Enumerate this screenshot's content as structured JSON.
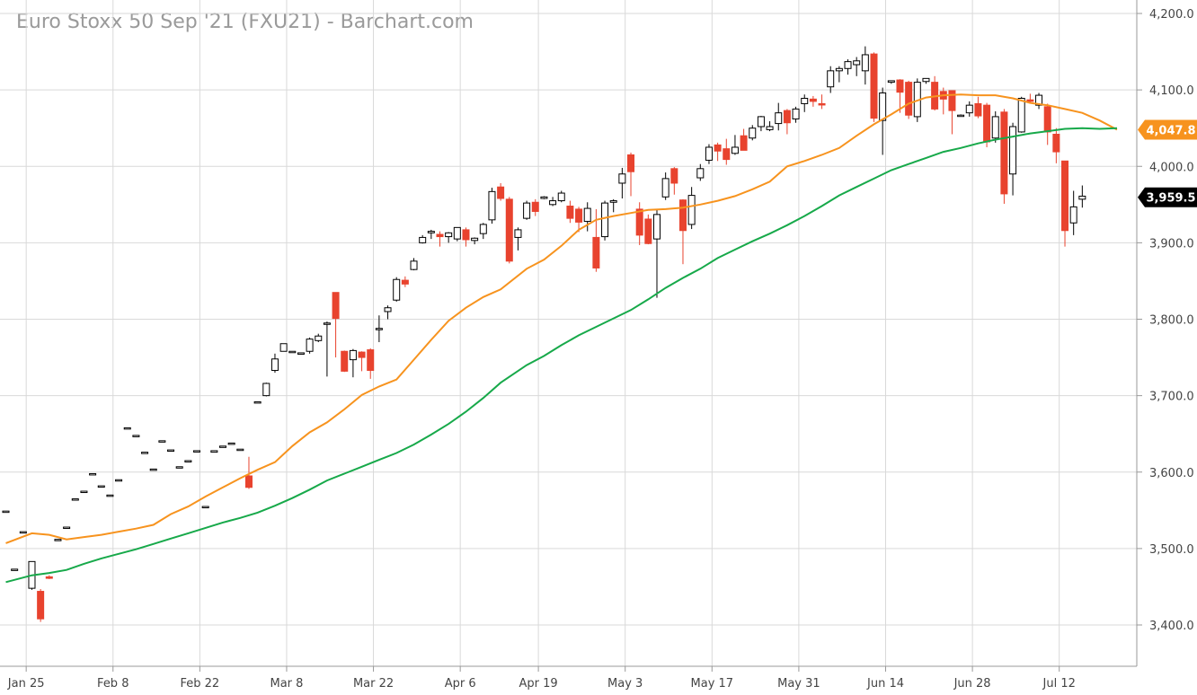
{
  "title": "Euro Stoxx 50 Sep '21 (FXU21) - Barchart.com",
  "chart_data": {
    "type": "candlestick",
    "title": "Euro Stoxx 50 Sep '21 (FXU21) - Barchart.com",
    "ylim": [
      3380,
      4200
    ],
    "y_ticks": [
      "3,400.0",
      "3,500.0",
      "3,600.0",
      "3,700.0",
      "3,800.0",
      "3,900.0",
      "4,000.0",
      "4,100.0",
      "4,200.0"
    ],
    "x_tick_labels": [
      {
        "label": "Jan 25",
        "index": 1
      },
      {
        "label": "Feb 8",
        "index": 11
      },
      {
        "label": "Feb 22",
        "index": 21
      },
      {
        "label": "Mar 8",
        "index": 31
      },
      {
        "label": "Mar 22",
        "index": 41
      },
      {
        "label": "Apr 6",
        "index": 51
      },
      {
        "label": "Apr 19",
        "index": 60
      },
      {
        "label": "May 3",
        "index": 70
      },
      {
        "label": "May 17",
        "index": 80
      },
      {
        "label": "May 31",
        "index": 90
      },
      {
        "label": "Jun 14",
        "index": 100
      },
      {
        "label": "Jun 28",
        "index": 110
      },
      {
        "label": "Jul 12",
        "index": 120
      }
    ],
    "grid": true,
    "colors": {
      "up": "#ffffff",
      "up_edge": "#000000",
      "down": "#e8432e",
      "ma_short": "#f7931e",
      "ma_long": "#17a94a",
      "grid": "#d9d9d9"
    },
    "candles": [
      [
        3549,
        3549,
        3549,
        3549
      ],
      [
        3473,
        3473,
        3473,
        3473
      ],
      [
        3522,
        3522,
        3522,
        3522
      ],
      [
        3448,
        3483,
        3446,
        3481
      ],
      [
        3444,
        3408,
        3404,
        3447
      ],
      [
        3463,
        3461,
        3460,
        3465
      ],
      [
        3512,
        3512,
        3512,
        3512
      ],
      [
        3528,
        3528,
        3528,
        3528
      ],
      [
        3565,
        3565,
        3565,
        3565
      ],
      [
        3575,
        3575,
        3575,
        3575
      ],
      [
        3598,
        3598,
        3598,
        3598
      ],
      [
        3582,
        3582,
        3582,
        3582
      ],
      [
        3570,
        3570,
        3570,
        3570
      ],
      [
        3590,
        3590,
        3590,
        3590
      ],
      [
        3658,
        3658,
        3658,
        3658
      ],
      [
        3648,
        3648,
        3648,
        3648
      ],
      [
        3626,
        3626,
        3626,
        3626
      ],
      [
        3604,
        3604,
        3604,
        3604
      ],
      [
        3641,
        3641,
        3641,
        3641
      ],
      [
        3629,
        3629,
        3629,
        3629
      ],
      [
        3607,
        3607,
        3607,
        3607
      ],
      [
        3615,
        3615,
        3615,
        3615
      ],
      [
        3628,
        3628,
        3628,
        3628
      ],
      [
        3555,
        3555,
        3555,
        3555
      ],
      [
        3626,
        3628,
        3626,
        3628
      ],
      [
        3634,
        3634,
        3634,
        3634
      ],
      [
        3638,
        3638,
        3638,
        3638
      ],
      [
        3630,
        3630,
        3630,
        3630
      ],
      [
        3595,
        3580,
        3578,
        3620
      ],
      [
        3692,
        3692,
        3692,
        3692
      ],
      [
        3700,
        3716,
        3699,
        3717
      ],
      [
        3733,
        3748,
        3730,
        3755
      ],
      [
        3758,
        3768,
        3758,
        3768
      ],
      [
        3758,
        3758,
        3758,
        3758
      ],
      [
        3756,
        3756,
        3756,
        3756
      ],
      [
        3758,
        3774,
        3755,
        3776
      ],
      [
        3772,
        3778,
        3770,
        3781
      ],
      [
        3794,
        3795,
        3725,
        3797
      ],
      [
        3835,
        3801,
        3750,
        3835
      ],
      [
        3758,
        3732,
        3731,
        3759
      ],
      [
        3747,
        3759,
        3724,
        3761
      ],
      [
        3757,
        3750,
        3732,
        3758
      ],
      [
        3760,
        3733,
        3722,
        3762
      ],
      [
        3788,
        3788,
        3770,
        3805
      ],
      [
        3810,
        3815,
        3800,
        3818
      ],
      [
        3825,
        3852,
        3823,
        3855
      ],
      [
        3851,
        3846,
        3842,
        3856
      ],
      [
        3865,
        3876,
        3864,
        3880
      ],
      [
        3900,
        3907,
        3899,
        3910
      ],
      [
        3913,
        3915,
        3905,
        3917
      ],
      [
        3911,
        3908,
        3895,
        3915
      ],
      [
        3908,
        3913,
        3900,
        3914
      ],
      [
        3905,
        3920,
        3902,
        3920
      ],
      [
        3917,
        3904,
        3895,
        3920
      ],
      [
        3903,
        3906,
        3898,
        3907
      ],
      [
        3912,
        3924,
        3905,
        3926
      ],
      [
        3930,
        3967,
        3925,
        3972
      ],
      [
        3973,
        3958,
        3955,
        3978
      ],
      [
        3957,
        3876,
        3873,
        3960
      ],
      [
        3907,
        3917,
        3890,
        3920
      ],
      [
        3932,
        3952,
        3930,
        3955
      ],
      [
        3953,
        3941,
        3935,
        3957
      ],
      [
        3958,
        3960,
        3957,
        3961
      ],
      [
        3950,
        3955,
        3948,
        3960
      ],
      [
        3955,
        3965,
        3953,
        3968
      ],
      [
        3948,
        3932,
        3926,
        3955
      ],
      [
        3944,
        3927,
        3914,
        3947
      ],
      [
        3928,
        3945,
        3915,
        3953
      ],
      [
        3907,
        3867,
        3862,
        3944
      ],
      [
        3908,
        3952,
        3903,
        3955
      ],
      [
        3953,
        3955,
        3940,
        3957
      ],
      [
        3978,
        3990,
        3958,
        3998
      ],
      [
        4015,
        3993,
        3961,
        4018
      ],
      [
        3944,
        3910,
        3897,
        3953
      ],
      [
        3931,
        3899,
        3898,
        3937
      ],
      [
        3905,
        3937,
        3828,
        3943
      ],
      [
        3960,
        3984,
        3956,
        3992
      ],
      [
        3997,
        3978,
        3963,
        3999
      ],
      [
        3956,
        3916,
        3872,
        3957
      ],
      [
        3924,
        3962,
        3918,
        3973
      ],
      [
        3985,
        3997,
        3981,
        4003
      ],
      [
        4008,
        4025,
        4003,
        4029
      ],
      [
        4028,
        4020,
        4007,
        4031
      ],
      [
        4023,
        4009,
        4002,
        4036
      ],
      [
        4017,
        4025,
        4015,
        4041
      ],
      [
        4040,
        4021,
        4021,
        4049
      ],
      [
        4037,
        4050,
        4034,
        4054
      ],
      [
        4052,
        4065,
        4046,
        4066
      ],
      [
        4048,
        4052,
        4046,
        4059
      ],
      [
        4056,
        4070,
        4047,
        4083
      ],
      [
        4073,
        4057,
        4042,
        4075
      ],
      [
        4062,
        4075,
        4057,
        4078
      ],
      [
        4082,
        4089,
        4071,
        4094
      ],
      [
        4088,
        4085,
        4078,
        4092
      ],
      [
        4082,
        4081,
        4075,
        4094
      ],
      [
        4104,
        4125,
        4096,
        4131
      ],
      [
        4125,
        4128,
        4110,
        4131
      ],
      [
        4128,
        4137,
        4120,
        4140
      ],
      [
        4133,
        4138,
        4118,
        4143
      ],
      [
        4125,
        4146,
        4107,
        4157
      ],
      [
        4147,
        4063,
        4058,
        4149
      ],
      [
        4060,
        4096,
        4015,
        4103
      ],
      [
        4110,
        4112,
        4108,
        4112
      ],
      [
        4113,
        4097,
        4070,
        4114
      ],
      [
        4110,
        4067,
        4062,
        4112
      ],
      [
        4065,
        4110,
        4058,
        4115
      ],
      [
        4111,
        4115,
        4108,
        4115
      ],
      [
        4110,
        4075,
        4073,
        4118
      ],
      [
        4098,
        4088,
        4068,
        4103
      ],
      [
        4099,
        4073,
        4042,
        4099
      ],
      [
        4067,
        4067,
        4067,
        4068
      ],
      [
        4070,
        4080,
        4065,
        4085
      ],
      [
        4082,
        4066,
        4063,
        4091
      ],
      [
        4080,
        4032,
        4025,
        4083
      ],
      [
        4037,
        4065,
        4031,
        4072
      ],
      [
        4071,
        3964,
        3951,
        4075
      ],
      [
        3990,
        4052,
        3962,
        4057
      ],
      [
        4045,
        4089,
        4044,
        4091
      ],
      [
        4087,
        4085,
        4082,
        4095
      ],
      [
        4080,
        4093,
        4075,
        4096
      ],
      [
        4078,
        4045,
        4028,
        4082
      ],
      [
        4042,
        4019,
        4004,
        4050
      ],
      [
        4007,
        3916,
        3895,
        4007
      ],
      [
        3926,
        3947,
        3910,
        3968
      ],
      [
        3957,
        3961,
        3946,
        3975
      ]
    ],
    "series": [
      {
        "values": [
          [
            0,
            3507
          ],
          [
            3,
            3520
          ],
          [
            5,
            3518
          ],
          [
            7,
            3512
          ],
          [
            9,
            3515
          ],
          [
            11,
            3518
          ],
          [
            13,
            3522
          ],
          [
            15,
            3526
          ],
          [
            17,
            3531
          ],
          [
            19,
            3545
          ],
          [
            21,
            3555
          ],
          [
            23,
            3568
          ],
          [
            25,
            3580
          ],
          [
            27,
            3592
          ],
          [
            29,
            3603
          ],
          [
            31,
            3613
          ],
          [
            33,
            3634
          ],
          [
            35,
            3652
          ],
          [
            37,
            3665
          ],
          [
            39,
            3682
          ],
          [
            41,
            3701
          ],
          [
            43,
            3712
          ],
          [
            45,
            3721
          ],
          [
            47,
            3747
          ],
          [
            49,
            3773
          ],
          [
            51,
            3798
          ],
          [
            53,
            3815
          ],
          [
            55,
            3829
          ],
          [
            57,
            3839
          ],
          [
            60,
            3866
          ],
          [
            62,
            3878
          ],
          [
            64,
            3896
          ],
          [
            66,
            3917
          ],
          [
            68,
            3930
          ],
          [
            70,
            3935
          ],
          [
            72,
            3939
          ],
          [
            74,
            3943
          ],
          [
            76,
            3944
          ],
          [
            78,
            3946
          ],
          [
            80,
            3950
          ],
          [
            82,
            3955
          ],
          [
            84,
            3961
          ],
          [
            86,
            3970
          ],
          [
            88,
            3980
          ],
          [
            90,
            4000
          ],
          [
            92,
            4007
          ],
          [
            94,
            4015
          ],
          [
            96,
            4024
          ],
          [
            98,
            4040
          ],
          [
            100,
            4055
          ],
          [
            102,
            4068
          ],
          [
            104,
            4082
          ],
          [
            106,
            4090
          ],
          [
            108,
            4093
          ],
          [
            110,
            4094
          ],
          [
            112,
            4093
          ],
          [
            114,
            4093
          ],
          [
            116,
            4089
          ],
          [
            118,
            4083
          ],
          [
            120,
            4080
          ],
          [
            122,
            4075
          ],
          [
            124,
            4070
          ],
          [
            126,
            4060
          ],
          [
            128,
            4048
          ]
        ]
      },
      {
        "values": [
          [
            0,
            3456
          ],
          [
            3,
            3465
          ],
          [
            5,
            3468
          ],
          [
            7,
            3472
          ],
          [
            9,
            3480
          ],
          [
            11,
            3487
          ],
          [
            13,
            3493
          ],
          [
            15,
            3499
          ],
          [
            17,
            3506
          ],
          [
            19,
            3513
          ],
          [
            21,
            3520
          ],
          [
            23,
            3527
          ],
          [
            25,
            3534
          ],
          [
            27,
            3540
          ],
          [
            29,
            3547
          ],
          [
            31,
            3556
          ],
          [
            33,
            3566
          ],
          [
            35,
            3577
          ],
          [
            37,
            3589
          ],
          [
            39,
            3598
          ],
          [
            41,
            3607
          ],
          [
            43,
            3616
          ],
          [
            45,
            3625
          ],
          [
            47,
            3636
          ],
          [
            49,
            3649
          ],
          [
            51,
            3663
          ],
          [
            53,
            3679
          ],
          [
            55,
            3697
          ],
          [
            57,
            3717
          ],
          [
            60,
            3740
          ],
          [
            62,
            3752
          ],
          [
            64,
            3766
          ],
          [
            66,
            3779
          ],
          [
            68,
            3790
          ],
          [
            70,
            3801
          ],
          [
            72,
            3812
          ],
          [
            74,
            3826
          ],
          [
            76,
            3841
          ],
          [
            78,
            3854
          ],
          [
            80,
            3866
          ],
          [
            82,
            3880
          ],
          [
            84,
            3891
          ],
          [
            86,
            3902
          ],
          [
            88,
            3912
          ],
          [
            90,
            3923
          ],
          [
            92,
            3935
          ],
          [
            94,
            3948
          ],
          [
            96,
            3962
          ],
          [
            98,
            3973
          ],
          [
            100,
            3984
          ],
          [
            102,
            3995
          ],
          [
            104,
            4003
          ],
          [
            106,
            4011
          ],
          [
            108,
            4019
          ],
          [
            110,
            4024
          ],
          [
            112,
            4030
          ],
          [
            114,
            4035
          ],
          [
            116,
            4039
          ],
          [
            118,
            4043
          ],
          [
            120,
            4046
          ],
          [
            122,
            4049
          ],
          [
            124,
            4050
          ],
          [
            126,
            4049
          ],
          [
            128,
            4050
          ]
        ]
      }
    ],
    "price_badges": [
      {
        "label": "4,047.8",
        "value": 4047.8,
        "color": "#f7931e"
      },
      {
        "label": "3,959.5",
        "value": 3959.5,
        "color": "#000000"
      }
    ]
  }
}
